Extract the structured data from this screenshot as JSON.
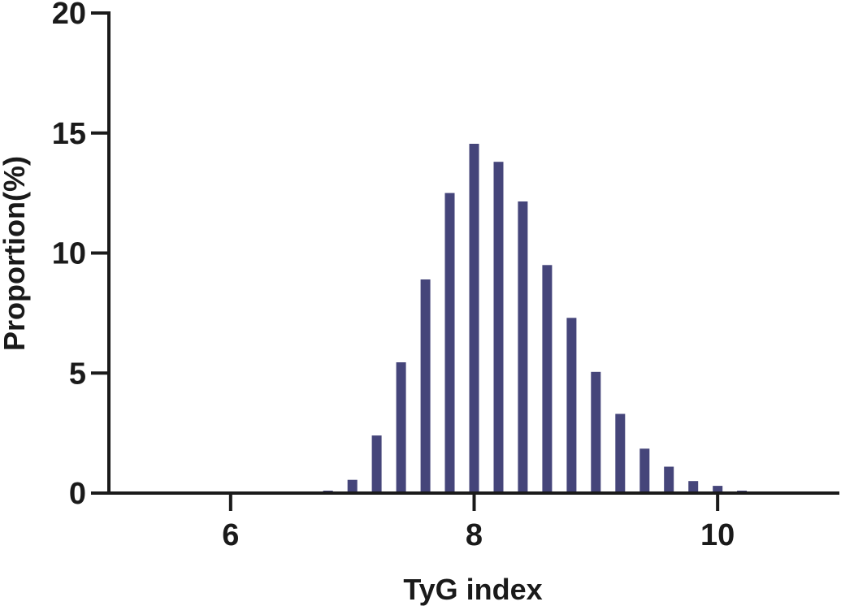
{
  "chart_data": {
    "type": "bar",
    "xlabel": "TyG index",
    "ylabel": "Proportion(%)",
    "xlim": [
      5.0,
      11.0
    ],
    "ylim": [
      0,
      20
    ],
    "x_ticks": [
      6,
      8,
      10
    ],
    "y_ticks": [
      0,
      5,
      10,
      15,
      20
    ],
    "x_tick_labels": [
      "6",
      "8",
      "10"
    ],
    "y_tick_labels": [
      "0",
      "5",
      "10",
      "15",
      "20"
    ],
    "bar_color": "#45457a",
    "grid": false,
    "x": [
      6.6,
      6.8,
      7.0,
      7.2,
      7.4,
      7.6,
      7.8,
      8.0,
      8.2,
      8.4,
      8.6,
      8.8,
      9.0,
      9.2,
      9.4,
      9.6,
      9.8,
      10.0,
      10.2,
      10.4,
      10.6
    ],
    "values": [
      0.05,
      0.1,
      0.55,
      2.4,
      5.45,
      8.9,
      12.5,
      14.55,
      13.8,
      12.15,
      9.5,
      7.3,
      5.05,
      3.3,
      1.85,
      1.1,
      0.5,
      0.3,
      0.1,
      0.05,
      0.03
    ]
  }
}
